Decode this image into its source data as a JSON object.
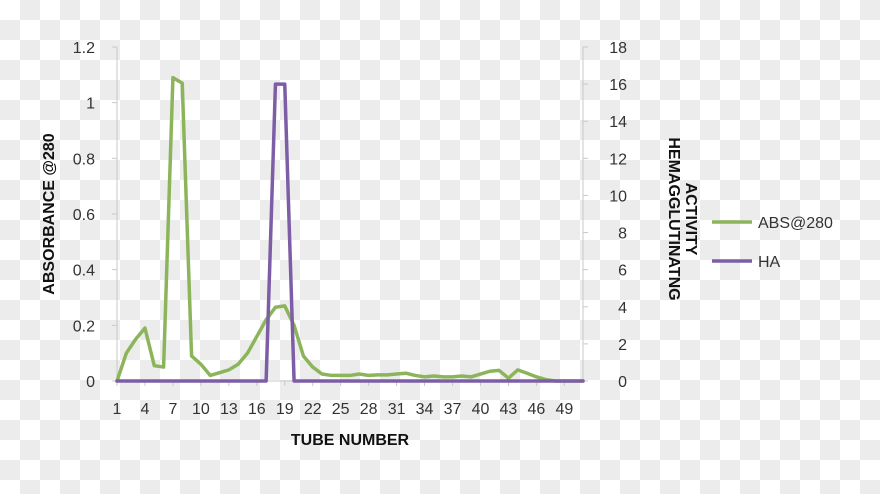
{
  "chart_data": {
    "type": "line",
    "title": "",
    "xlabel": "TUBE NUMBER",
    "ylabel": "ABSORBANCE @280",
    "y2label_lines": [
      "HEMAGGLUTINATNG",
      "ACTIVITY"
    ],
    "ylim": [
      0,
      1.2
    ],
    "y2lim": [
      0,
      18
    ],
    "yticks": [
      "0",
      "0.2",
      "0.4",
      "0.6",
      "0.8",
      "1",
      "1.2"
    ],
    "y2ticks": [
      "0",
      "2",
      "4",
      "6",
      "8",
      "10",
      "12",
      "14",
      "16",
      "18"
    ],
    "xlim": [
      1,
      51
    ],
    "xticks": [
      "1",
      "4",
      "7",
      "10",
      "13",
      "16",
      "19",
      "22",
      "25",
      "28",
      "31",
      "34",
      "37",
      "40",
      "43",
      "46",
      "49"
    ],
    "legend_position": "right",
    "grid": false,
    "x": [
      1,
      2,
      3,
      4,
      5,
      6,
      7,
      8,
      9,
      10,
      11,
      12,
      13,
      14,
      15,
      16,
      17,
      18,
      19,
      20,
      21,
      22,
      23,
      24,
      25,
      26,
      27,
      28,
      29,
      30,
      31,
      32,
      33,
      34,
      35,
      36,
      37,
      38,
      39,
      40,
      41,
      42,
      43,
      44,
      45,
      46,
      47,
      48,
      49,
      50,
      51
    ],
    "series": [
      {
        "name": "ABS@280",
        "axis": "left",
        "color": "#8cb45a",
        "values": [
          0,
          0.1,
          0.15,
          0.19,
          0.055,
          0.05,
          1.09,
          1.07,
          0.09,
          0.06,
          0.02,
          0.03,
          0.04,
          0.06,
          0.1,
          0.16,
          0.22,
          0.265,
          0.27,
          0.2,
          0.09,
          0.05,
          0.025,
          0.02,
          0.02,
          0.02,
          0.025,
          0.02,
          0.022,
          0.022,
          0.025,
          0.028,
          0.02,
          0.015,
          0.018,
          0.015,
          0.015,
          0.018,
          0.015,
          0.025,
          0.035,
          0.038,
          0.01,
          0.04,
          0.028,
          0.015,
          0.005,
          0,
          0,
          0,
          0
        ]
      },
      {
        "name": "HA",
        "axis": "right",
        "color": "#7d5ea6",
        "values": [
          0,
          0,
          0,
          0,
          0,
          0,
          0,
          0,
          0,
          0,
          0,
          0,
          0,
          0,
          0,
          0,
          0,
          16,
          16,
          0,
          0,
          0,
          0,
          0,
          0,
          0,
          0,
          0,
          0,
          0,
          0,
          0,
          0,
          0,
          0,
          0,
          0,
          0,
          0,
          0,
          0,
          0,
          0,
          0,
          0,
          0,
          0,
          0,
          0,
          0,
          0
        ]
      }
    ]
  }
}
